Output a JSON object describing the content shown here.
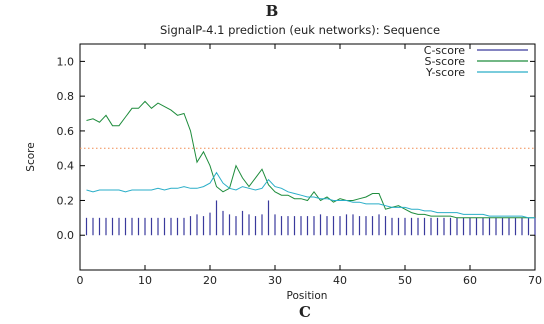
{
  "panel_labels": {
    "top": "B",
    "bottom": "C"
  },
  "chart_data": {
    "type": "line",
    "title": "SignalP-4.1 prediction (euk networks): Sequence",
    "xlabel": "Position",
    "ylabel": "Score",
    "xlim": [
      0,
      70
    ],
    "ylim": [
      -0.2,
      1.1
    ],
    "xticks": [
      0,
      10,
      20,
      30,
      40,
      50,
      60,
      70
    ],
    "yticks": [
      0.0,
      0.2,
      0.4,
      0.6,
      0.8,
      1.0
    ],
    "xtick_labels": [
      "0",
      "10",
      "20",
      "30",
      "40",
      "50",
      "60",
      "70"
    ],
    "ytick_labels": [
      "0.0",
      "0.2",
      "0.4",
      "0.6",
      "0.8",
      "1.0"
    ],
    "threshold": {
      "value": 0.5,
      "color": "#f08c50",
      "style": "dotted"
    },
    "legend_position": "top-right",
    "grid": false,
    "series": [
      {
        "name": "C-score",
        "style": "impulse",
        "color": "#3a3a9c",
        "x": [
          1,
          2,
          3,
          4,
          5,
          6,
          7,
          8,
          9,
          10,
          11,
          12,
          13,
          14,
          15,
          16,
          17,
          18,
          19,
          20,
          21,
          22,
          23,
          24,
          25,
          26,
          27,
          28,
          29,
          30,
          31,
          32,
          33,
          34,
          35,
          36,
          37,
          38,
          39,
          40,
          41,
          42,
          43,
          44,
          45,
          46,
          47,
          48,
          49,
          50,
          51,
          52,
          53,
          54,
          55,
          56,
          57,
          58,
          59,
          60,
          61,
          62,
          63,
          64,
          65,
          66,
          67,
          68,
          69,
          70
        ],
        "values": [
          0.1,
          0.1,
          0.1,
          0.1,
          0.1,
          0.1,
          0.1,
          0.1,
          0.1,
          0.1,
          0.1,
          0.1,
          0.1,
          0.1,
          0.1,
          0.1,
          0.11,
          0.12,
          0.11,
          0.13,
          0.2,
          0.14,
          0.12,
          0.11,
          0.14,
          0.12,
          0.11,
          0.12,
          0.2,
          0.12,
          0.11,
          0.11,
          0.11,
          0.11,
          0.11,
          0.11,
          0.12,
          0.11,
          0.11,
          0.11,
          0.12,
          0.12,
          0.11,
          0.11,
          0.11,
          0.12,
          0.11,
          0.1,
          0.1,
          0.1,
          0.1,
          0.1,
          0.1,
          0.1,
          0.1,
          0.1,
          0.1,
          0.1,
          0.1,
          0.1,
          0.1,
          0.1,
          0.1,
          0.1,
          0.1,
          0.1,
          0.1,
          0.1,
          0.1,
          0.1
        ]
      },
      {
        "name": "S-score",
        "style": "line",
        "color": "#1e8c3c",
        "x": [
          1,
          2,
          3,
          4,
          5,
          6,
          7,
          8,
          9,
          10,
          11,
          12,
          13,
          14,
          15,
          16,
          17,
          18,
          19,
          20,
          21,
          22,
          23,
          24,
          25,
          26,
          27,
          28,
          29,
          30,
          31,
          32,
          33,
          34,
          35,
          36,
          37,
          38,
          39,
          40,
          41,
          42,
          43,
          44,
          45,
          46,
          47,
          48,
          49,
          50,
          51,
          52,
          53,
          54,
          55,
          56,
          57,
          58,
          59,
          60,
          61,
          62,
          63,
          64,
          65,
          66,
          67,
          68,
          69,
          70
        ],
        "values": [
          0.66,
          0.67,
          0.65,
          0.69,
          0.63,
          0.63,
          0.68,
          0.73,
          0.73,
          0.77,
          0.73,
          0.76,
          0.74,
          0.72,
          0.69,
          0.7,
          0.6,
          0.42,
          0.48,
          0.4,
          0.28,
          0.25,
          0.27,
          0.4,
          0.33,
          0.28,
          0.33,
          0.38,
          0.29,
          0.25,
          0.23,
          0.23,
          0.21,
          0.21,
          0.2,
          0.25,
          0.2,
          0.22,
          0.19,
          0.21,
          0.2,
          0.2,
          0.21,
          0.22,
          0.24,
          0.24,
          0.15,
          0.16,
          0.17,
          0.15,
          0.13,
          0.12,
          0.12,
          0.11,
          0.11,
          0.11,
          0.11,
          0.1,
          0.1,
          0.1,
          0.1,
          0.1,
          0.1,
          0.1,
          0.1,
          0.1,
          0.1,
          0.1,
          0.1,
          0.1
        ]
      },
      {
        "name": "Y-score",
        "style": "line",
        "color": "#2aaec8",
        "x": [
          1,
          2,
          3,
          4,
          5,
          6,
          7,
          8,
          9,
          10,
          11,
          12,
          13,
          14,
          15,
          16,
          17,
          18,
          19,
          20,
          21,
          22,
          23,
          24,
          25,
          26,
          27,
          28,
          29,
          30,
          31,
          32,
          33,
          34,
          35,
          36,
          37,
          38,
          39,
          40,
          41,
          42,
          43,
          44,
          45,
          46,
          47,
          48,
          49,
          50,
          51,
          52,
          53,
          54,
          55,
          56,
          57,
          58,
          59,
          60,
          61,
          62,
          63,
          64,
          65,
          66,
          67,
          68,
          69,
          70
        ],
        "values": [
          0.26,
          0.25,
          0.26,
          0.26,
          0.26,
          0.26,
          0.25,
          0.26,
          0.26,
          0.26,
          0.26,
          0.27,
          0.26,
          0.27,
          0.27,
          0.28,
          0.27,
          0.27,
          0.28,
          0.3,
          0.36,
          0.3,
          0.27,
          0.26,
          0.28,
          0.27,
          0.26,
          0.27,
          0.32,
          0.28,
          0.27,
          0.25,
          0.24,
          0.23,
          0.22,
          0.22,
          0.21,
          0.21,
          0.2,
          0.2,
          0.2,
          0.19,
          0.19,
          0.18,
          0.18,
          0.18,
          0.17,
          0.16,
          0.16,
          0.16,
          0.15,
          0.15,
          0.14,
          0.14,
          0.13,
          0.13,
          0.13,
          0.13,
          0.12,
          0.12,
          0.12,
          0.12,
          0.11,
          0.11,
          0.11,
          0.11,
          0.11,
          0.11,
          0.1,
          0.1
        ]
      }
    ]
  }
}
